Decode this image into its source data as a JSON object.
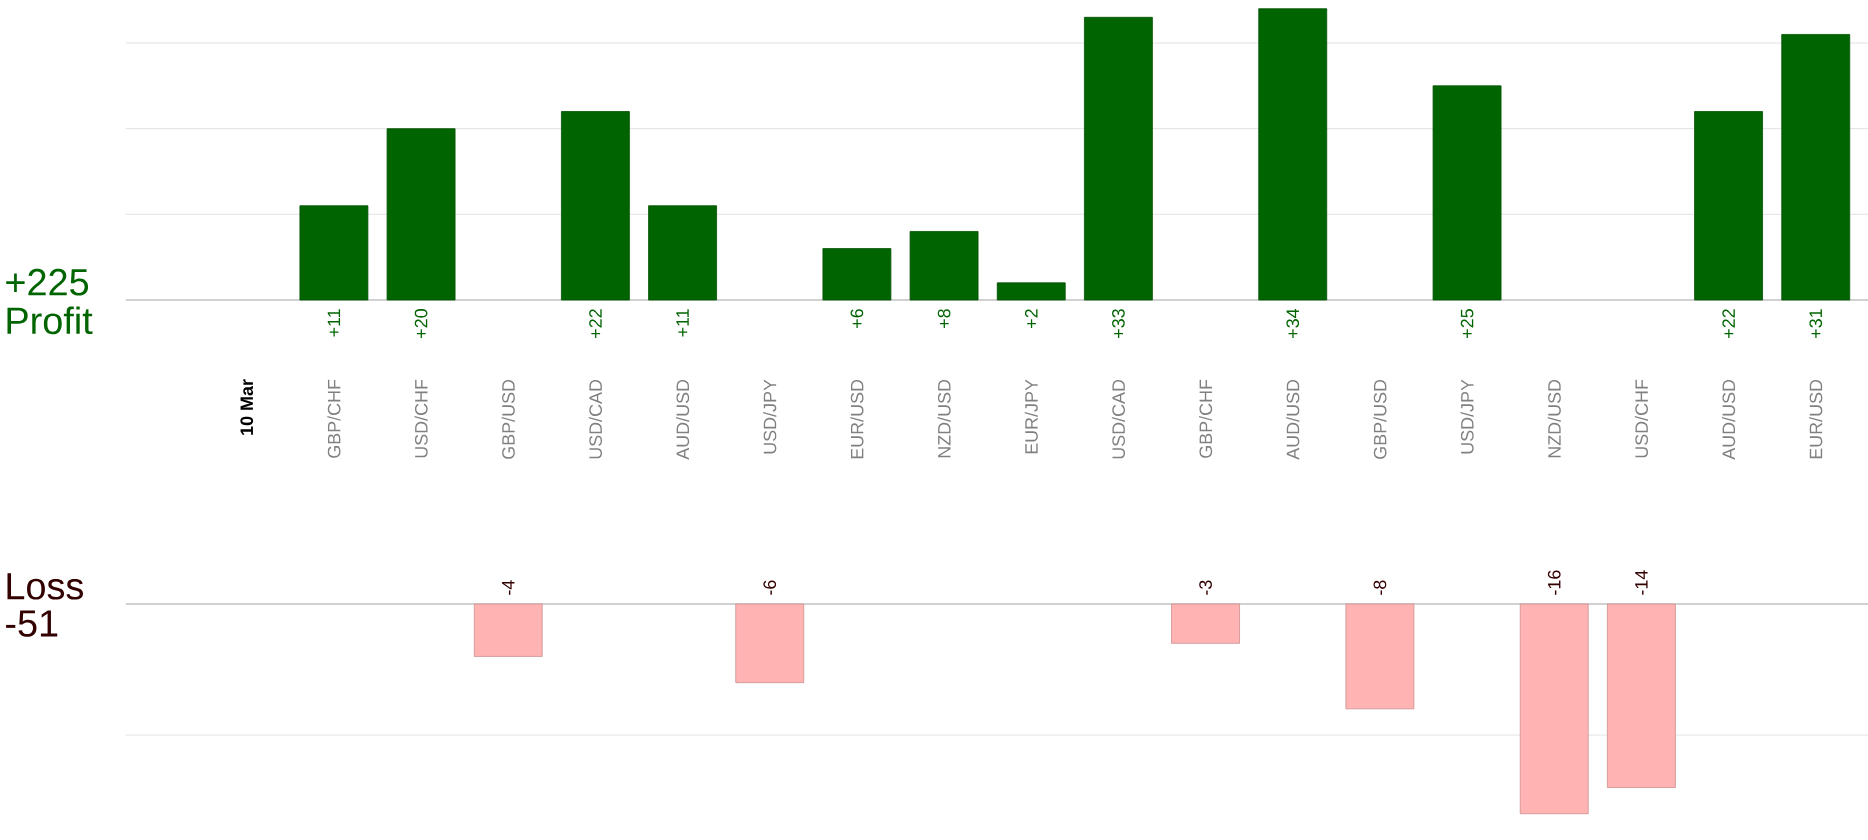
{
  "chart_data": [
    {
      "type": "bar",
      "categories": [
        "10 Mar",
        "GBP/CHF",
        "USD/CHF",
        "GBP/USD",
        "USD/CAD",
        "AUD/USD",
        "USD/JPY",
        "EUR/USD",
        "NZD/USD",
        "EUR/JPY",
        "USD/CAD",
        "GBP/CHF",
        "AUD/USD",
        "GBP/USD",
        "USD/JPY",
        "NZD/USD",
        "USD/CHF",
        "AUD/USD",
        "EUR/USD"
      ],
      "values": [
        null,
        11,
        20,
        null,
        22,
        11,
        null,
        6,
        8,
        2,
        33,
        null,
        34,
        null,
        25,
        null,
        null,
        22,
        31
      ],
      "value_labels": [
        null,
        "+11",
        "+20",
        null,
        "+22",
        "+11",
        null,
        "+6",
        "+8",
        "+2",
        "+33",
        null,
        "+34",
        null,
        "+25",
        null,
        null,
        "+22",
        "+31"
      ],
      "color": "#006400",
      "yticks": [
        {
          "value": 10,
          "label": null
        },
        {
          "value": 20,
          "label": null
        },
        {
          "value": 30,
          "label": null
        }
      ],
      "grid": "y",
      "tick_labels": "x",
      "annotations": [
        "+225",
        "Profit"
      ]
    },
    {
      "type": "bar",
      "categories": [
        null,
        null,
        null,
        null,
        null,
        null,
        null,
        null,
        null,
        null,
        null,
        null,
        null,
        null,
        null,
        null,
        null,
        null,
        null
      ],
      "values": [
        null,
        null,
        null,
        -4,
        null,
        null,
        -6,
        null,
        null,
        null,
        null,
        -3,
        null,
        -8,
        null,
        -16,
        -14,
        null,
        null
      ],
      "value_labels": [
        null,
        null,
        null,
        "-4",
        null,
        null,
        "-6",
        null,
        null,
        null,
        null,
        "-3",
        null,
        "-8",
        null,
        "-16",
        "-14",
        null,
        null
      ],
      "color": "#ffb3b3",
      "ref_lines": [
        {
          "axis": "y",
          "value": -10,
          "color": "#dbdbdb"
        }
      ],
      "tick_labels": false,
      "annotations": [
        "Loss",
        "-51"
      ]
    }
  ]
}
